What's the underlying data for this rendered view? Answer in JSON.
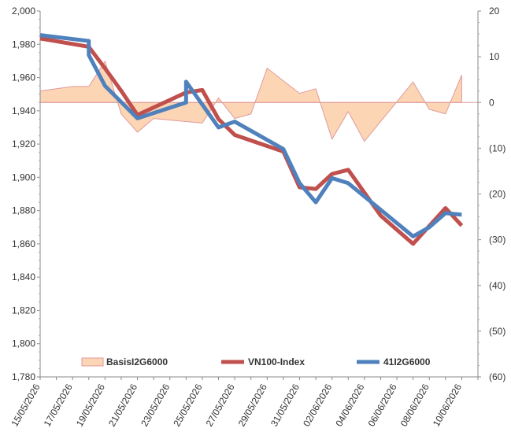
{
  "chart_data": {
    "type": "line",
    "x_dates": [
      "15/05/2026",
      "16/05/2026",
      "17/05/2026",
      "18/05/2026",
      "19/05/2026",
      "20/05/2026",
      "21/05/2026",
      "22/05/2026",
      "23/05/2026",
      "24/05/2026",
      "25/05/2026",
      "26/05/2026",
      "27/05/2026",
      "28/05/2026",
      "29/05/2026",
      "30/05/2026",
      "31/05/2026",
      "01/06/2026",
      "02/06/2026",
      "03/06/2026",
      "04/06/2026",
      "05/06/2026",
      "06/06/2026",
      "07/06/2026",
      "08/06/2026",
      "09/06/2026",
      "10/06/2026",
      "11/06/2026"
    ],
    "x_tick_labels": [
      "15/05/2026",
      "17/05/2026",
      "19/05/2026",
      "21/05/2026",
      "23/05/2026",
      "25/05/2026",
      "27/05/2026",
      "29/05/2026",
      "31/05/2026",
      "02/06/2026",
      "04/06/2026",
      "06/06/2026",
      "08/06/2026",
      "10/06/2026"
    ],
    "left_axis": {
      "min": 1780,
      "max": 2000,
      "step": 20,
      "tick_labels": [
        "1,780",
        "1,800",
        "1,820",
        "1,840",
        "1,860",
        "1,880",
        "1,900",
        "1,920",
        "1,940",
        "1,960",
        "1,980",
        "2,000"
      ]
    },
    "right_axis": {
      "min": -60,
      "max": 20,
      "step": 10,
      "tick_labels": [
        "(60)",
        "(50)",
        "(40)",
        "(30)",
        "(20)",
        "(10)",
        "0",
        "10",
        "20"
      ]
    },
    "grid": false,
    "legend_position": "bottom-inside",
    "series": [
      {
        "name": "BasisI2G6000",
        "type": "area",
        "axis": "right",
        "fill": "#fcd5b5",
        "stroke": "#e09a9a",
        "points": [
          [
            "15/05/2026",
            2.5
          ],
          [
            "17/05/2026",
            3.5
          ],
          [
            "18/05/2026",
            3.5
          ],
          [
            "19/05/2026",
            9
          ],
          [
            "20/05/2026",
            -2.5
          ],
          [
            "21/05/2026",
            -6.5
          ],
          [
            "22/05/2026",
            -3.5
          ],
          [
            "25/05/2026",
            -4.5
          ],
          [
            "26/05/2026",
            1
          ],
          [
            "27/05/2026",
            -3.5
          ],
          [
            "28/05/2026",
            -2.5
          ],
          [
            "29/05/2026",
            7.5
          ],
          [
            "31/05/2026",
            2
          ],
          [
            "01/06/2026",
            3
          ],
          [
            "02/06/2026",
            -8
          ],
          [
            "03/06/2026",
            -2
          ],
          [
            "04/06/2026",
            -8.5
          ],
          [
            "07/06/2026",
            4.5
          ],
          [
            "08/06/2026",
            -1.5
          ],
          [
            "09/06/2026",
            -2.5
          ],
          [
            "10/06/2026",
            6
          ]
        ]
      },
      {
        "name": "VN100-Index",
        "type": "line",
        "axis": "left",
        "color": "#c0504d",
        "points": [
          [
            "15/05/2026",
            1983.5
          ],
          [
            "18/05/2026",
            1978.5
          ],
          [
            "19/05/2026",
            1965.5
          ],
          [
            "20/05/2026",
            1952
          ],
          [
            "21/05/2026",
            1937.5
          ],
          [
            "24/05/2026",
            1951
          ],
          [
            "25/05/2026",
            1952.5
          ],
          [
            "26/05/2026",
            1935
          ],
          [
            "27/05/2026",
            1925.5
          ],
          [
            "30/05/2026",
            1915.5
          ],
          [
            "31/05/2026",
            1894
          ],
          [
            "01/06/2026",
            1893
          ],
          [
            "02/06/2026",
            1902
          ],
          [
            "03/06/2026",
            1904.5
          ],
          [
            "05/06/2026",
            1877
          ],
          [
            "07/06/2026",
            1860
          ],
          [
            "09/06/2026",
            1881.5
          ],
          [
            "10/06/2026",
            1871
          ]
        ]
      },
      {
        "name": "41I2G6000",
        "type": "line",
        "axis": "left",
        "color": "#4f81bd",
        "points": [
          [
            "15/05/2026",
            1985.5
          ],
          [
            "18/05/2026",
            1982
          ],
          [
            "18/05/2026",
            1973.5
          ],
          [
            "19/05/2026",
            1955
          ],
          [
            "21/05/2026",
            1935.5
          ],
          [
            "24/05/2026",
            1945
          ],
          [
            "24/05/2026",
            1957.5
          ],
          [
            "26/05/2026",
            1930
          ],
          [
            "27/05/2026",
            1933.5
          ],
          [
            "30/05/2026",
            1917
          ],
          [
            "31/05/2026",
            1896.5
          ],
          [
            "01/06/2026",
            1885
          ],
          [
            "02/06/2026",
            1899.5
          ],
          [
            "03/06/2026",
            1896.5
          ],
          [
            "07/06/2026",
            1864.5
          ],
          [
            "08/06/2026",
            1870
          ],
          [
            "09/06/2026",
            1878.5
          ],
          [
            "10/06/2026",
            1877.5
          ]
        ]
      }
    ]
  }
}
